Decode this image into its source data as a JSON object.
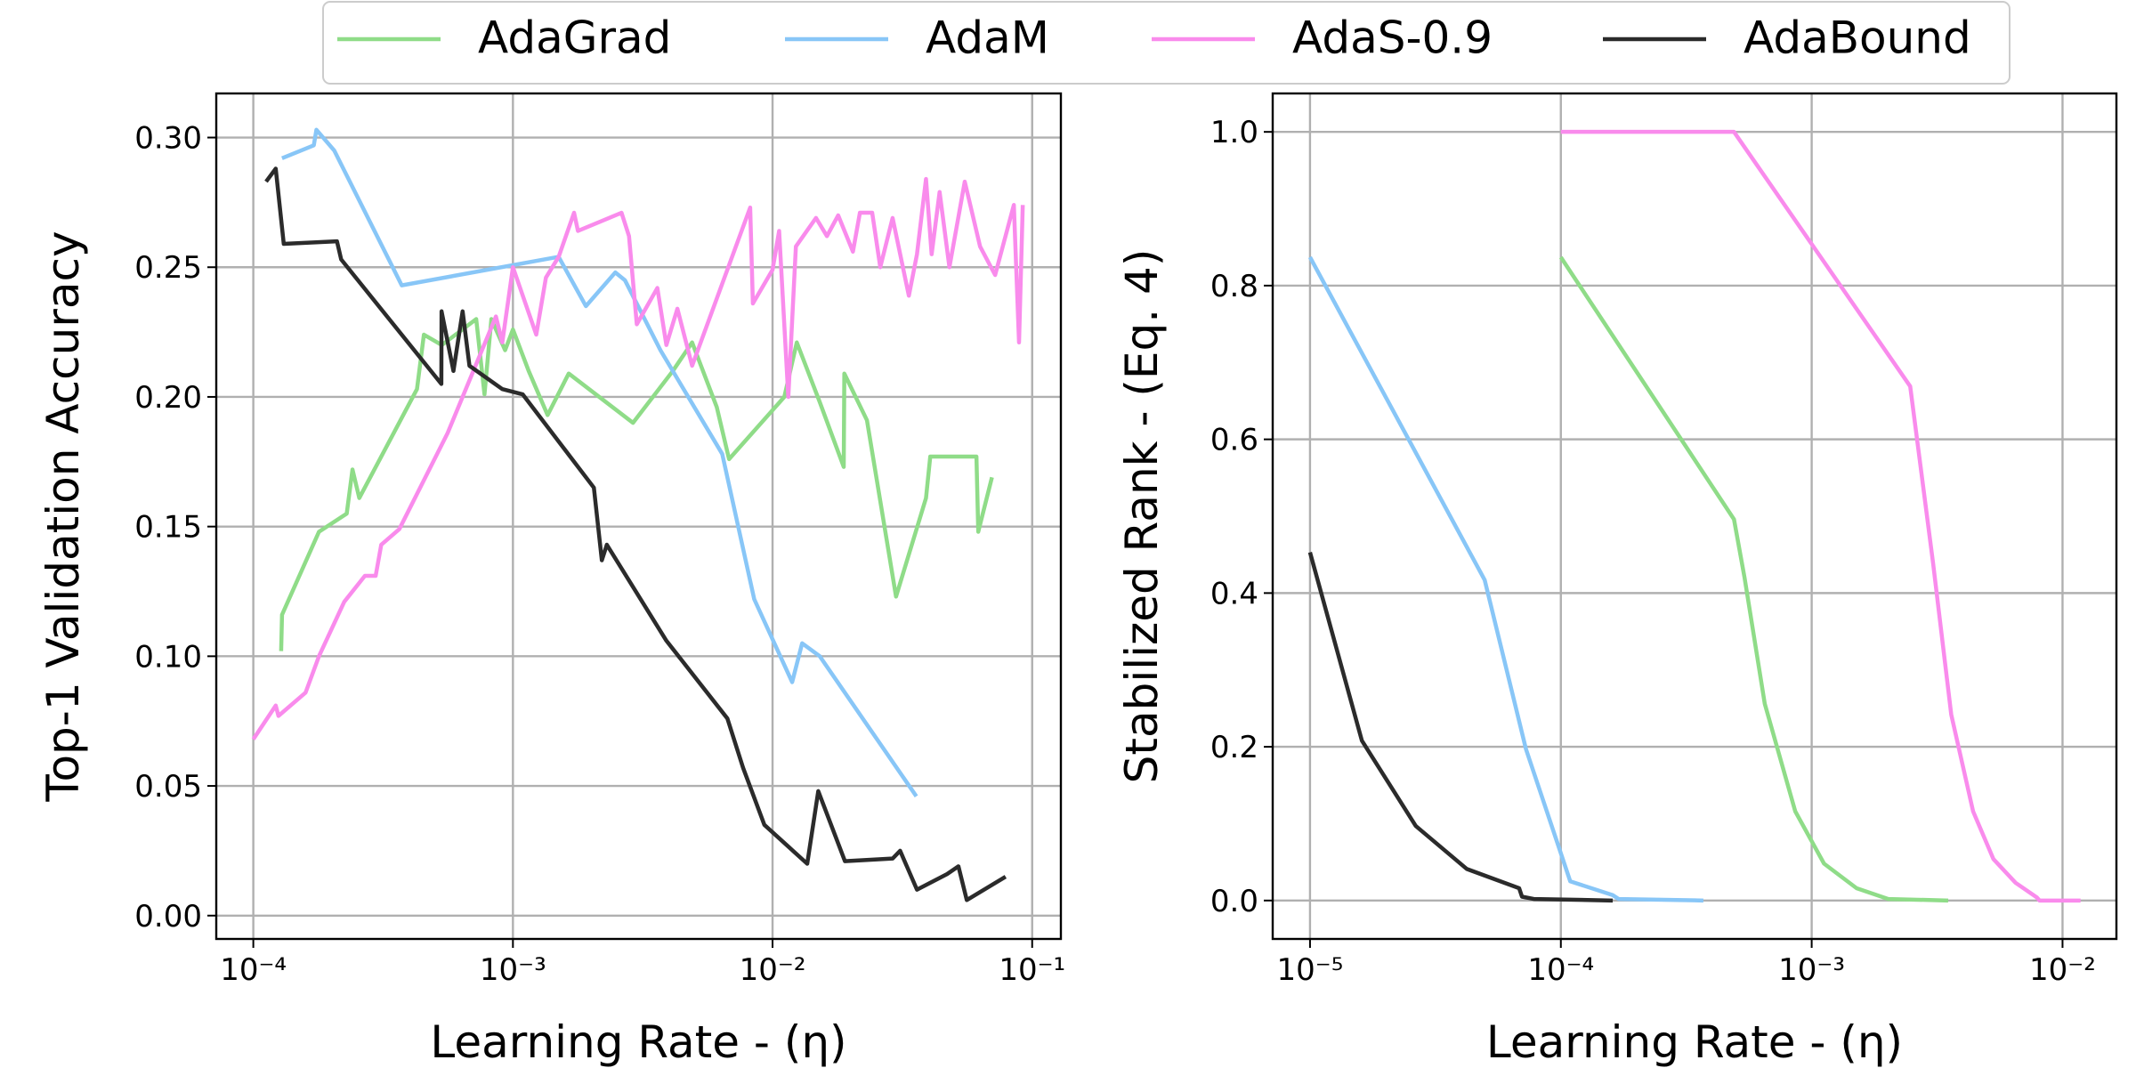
{
  "chart_data": [
    {
      "type": "line",
      "xscale": "log",
      "grid": true,
      "xlabel": "Learning Rate - (η)",
      "ylabel": "Top-1 Validation Accuracy",
      "xlim": [
        7.2e-05,
        0.129
      ],
      "ylim": [
        -0.009,
        0.317
      ],
      "xticks": [
        {
          "value": 0.0001,
          "label": "10⁻⁴"
        },
        {
          "value": 0.001,
          "label": "10⁻³"
        },
        {
          "value": 0.01,
          "label": "10⁻²"
        },
        {
          "value": 0.1,
          "label": "10⁻¹"
        }
      ],
      "yticks": [
        {
          "value": 0,
          "label": "0.00"
        },
        {
          "value": 0.05,
          "label": "0.05"
        },
        {
          "value": 0.1,
          "label": "0.10"
        },
        {
          "value": 0.15,
          "label": "0.15"
        },
        {
          "value": 0.2,
          "label": "0.20"
        },
        {
          "value": 0.25,
          "label": "0.25"
        },
        {
          "value": 0.3,
          "label": "0.30"
        }
      ],
      "series": [
        {
          "name": "AdaGrad",
          "color": "#8fdc88",
          "x": [
            0.000128,
            0.000129,
            0.000179,
            0.000229,
            0.000241,
            0.000256,
            0.000427,
            0.000454,
            0.000532,
            0.000722,
            0.000777,
            0.000826,
            0.000933,
            0.001,
            0.00115,
            0.00136,
            0.00164,
            0.0029,
            0.00413,
            0.0049,
            0.0061,
            0.0068,
            0.0111,
            0.0124,
            0.0152,
            0.0188,
            0.0189,
            0.0231,
            0.0299,
            0.039,
            0.0405,
            0.061,
            0.062,
            0.07
          ],
          "values": [
            0.102,
            0.116,
            0.148,
            0.155,
            0.172,
            0.161,
            0.203,
            0.224,
            0.22,
            0.23,
            0.201,
            0.23,
            0.218,
            0.226,
            0.21,
            0.193,
            0.209,
            0.19,
            0.21,
            0.221,
            0.196,
            0.176,
            0.2,
            0.221,
            0.198,
            0.173,
            0.209,
            0.191,
            0.123,
            0.161,
            0.177,
            0.177,
            0.148,
            0.169
          ]
        },
        {
          "name": "AdaM",
          "color": "#88c6f7",
          "x": [
            0.000129,
            0.000171,
            0.000175,
            0.000205,
            0.000373,
            0.0015,
            0.00191,
            0.00248,
            0.0027,
            0.0037,
            0.0064,
            0.0085,
            0.0119,
            0.013,
            0.0152,
            0.0358
          ],
          "values": [
            0.292,
            0.297,
            0.303,
            0.295,
            0.243,
            0.254,
            0.235,
            0.248,
            0.245,
            0.218,
            0.178,
            0.122,
            0.09,
            0.105,
            0.1,
            0.046
          ]
        },
        {
          "name": "AdaS-0.9",
          "color": "#f98bec",
          "x": [
            0.0001,
            0.000122,
            0.000125,
            0.000159,
            0.000179,
            0.000224,
            0.000269,
            0.000296,
            0.000311,
            0.000365,
            0.00056,
            0.00086,
            0.00091,
            0.001,
            0.00123,
            0.00134,
            0.0015,
            0.00172,
            0.00178,
            0.00262,
            0.0028,
            0.003,
            0.0036,
            0.0039,
            0.0043,
            0.0049,
            0.0082,
            0.0084,
            0.01,
            0.0106,
            0.0115,
            0.0123,
            0.0147,
            0.0162,
            0.0179,
            0.0204,
            0.0217,
            0.0242,
            0.026,
            0.029,
            0.0335,
            0.036,
            0.039,
            0.041,
            0.044,
            0.048,
            0.055,
            0.063,
            0.072,
            0.085,
            0.089,
            0.092
          ],
          "values": [
            0.068,
            0.081,
            0.077,
            0.086,
            0.1,
            0.121,
            0.131,
            0.131,
            0.143,
            0.149,
            0.186,
            0.231,
            0.221,
            0.25,
            0.224,
            0.246,
            0.254,
            0.271,
            0.264,
            0.271,
            0.262,
            0.228,
            0.242,
            0.22,
            0.234,
            0.212,
            0.273,
            0.236,
            0.249,
            0.264,
            0.2,
            0.258,
            0.269,
            0.262,
            0.27,
            0.256,
            0.271,
            0.271,
            0.25,
            0.269,
            0.239,
            0.255,
            0.284,
            0.255,
            0.279,
            0.25,
            0.283,
            0.258,
            0.247,
            0.274,
            0.221,
            0.274
          ]
        },
        {
          "name": "AdaBound",
          "color": "#2b2b2b",
          "x": [
            0.000112,
            0.000122,
            0.000131,
            0.00021,
            0.000218,
            0.00053,
            0.000531,
            0.00059,
            0.00064,
            0.00068,
            0.00091,
            0.00109,
            0.00205,
            0.0022,
            0.0023,
            0.0039,
            0.0067,
            0.0077,
            0.0093,
            0.0136,
            0.015,
            0.019,
            0.029,
            0.031,
            0.036,
            0.047,
            0.052,
            0.056,
            0.079
          ],
          "values": [
            0.283,
            0.288,
            0.259,
            0.26,
            0.253,
            0.205,
            0.233,
            0.21,
            0.233,
            0.212,
            0.203,
            0.201,
            0.165,
            0.137,
            0.143,
            0.106,
            0.076,
            0.057,
            0.035,
            0.02,
            0.048,
            0.021,
            0.022,
            0.025,
            0.01,
            0.016,
            0.019,
            0.006,
            0.015
          ]
        }
      ]
    },
    {
      "type": "line",
      "xscale": "log",
      "grid": true,
      "xlabel": "Learning Rate - (η)",
      "ylabel": "Stabilized Rank - (Eq. 4)",
      "xlim": [
        7.1e-06,
        0.0164
      ],
      "ylim": [
        -0.05,
        1.05
      ],
      "xticks": [
        {
          "value": 1e-05,
          "label": "10⁻⁵"
        },
        {
          "value": 0.0001,
          "label": "10⁻⁴"
        },
        {
          "value": 0.001,
          "label": "10⁻³"
        },
        {
          "value": 0.01,
          "label": "10⁻²"
        }
      ],
      "yticks": [
        {
          "value": 0,
          "label": "0.0"
        },
        {
          "value": 0.2,
          "label": "0.2"
        },
        {
          "value": 0.4,
          "label": "0.4"
        },
        {
          "value": 0.6,
          "label": "0.6"
        },
        {
          "value": 0.8,
          "label": "0.8"
        },
        {
          "value": 1,
          "label": "1.0"
        }
      ],
      "series": [
        {
          "name": "AdaGrad",
          "color": "#8fdc88",
          "x": [
            0.0001,
            0.00049,
            0.00054,
            0.00065,
            0.00086,
            0.00112,
            0.00151,
            0.00202,
            0.0035
          ],
          "values": [
            0.837,
            0.496,
            0.42,
            0.256,
            0.116,
            0.048,
            0.016,
            0.002,
            0
          ]
        },
        {
          "name": "AdaM",
          "color": "#88c6f7",
          "x": [
            1e-05,
            4.97e-05,
            7.26e-05,
            0.000109,
            0.000161,
            0.00017,
            0.00037
          ],
          "values": [
            0.837,
            0.417,
            0.197,
            0.025,
            0.007,
            0.002,
            0
          ]
        },
        {
          "name": "AdaS-0.9",
          "color": "#f98bec",
          "x": [
            0.0001,
            0.00049,
            0.00247,
            0.00305,
            0.0036,
            0.0044,
            0.0053,
            0.0065,
            0.0079,
            0.0081,
            0.0118
          ],
          "values": [
            1,
            1,
            0.669,
            0.438,
            0.242,
            0.116,
            0.054,
            0.023,
            0.004,
            0,
            0
          ]
        },
        {
          "name": "AdaBound",
          "color": "#2b2b2b",
          "x": [
            1e-05,
            1.61e-05,
            2.64e-05,
            4.22e-05,
            6.82e-05,
            7e-05,
            7.8e-05,
            0.000161
          ],
          "values": [
            0.453,
            0.208,
            0.097,
            0.041,
            0.016,
            0.005,
            0.002,
            0
          ]
        }
      ]
    }
  ]
}
